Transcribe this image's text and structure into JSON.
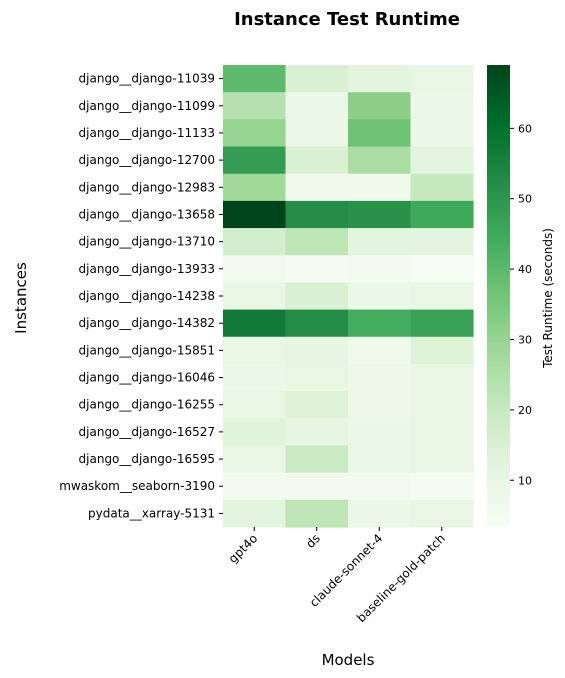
{
  "chart_data": {
    "type": "heatmap",
    "title": "Instance Test Runtime",
    "xlabel": "Models",
    "ylabel": "Instances",
    "colorbar_label": "Test Runtime (seconds)",
    "colormap": "Greens",
    "vmin": 3.5,
    "vmax": 69,
    "colorbar_ticks": [
      10,
      20,
      30,
      40,
      50,
      60
    ],
    "x_categories": [
      "gpt4o",
      "ds",
      "claude-sonnet-4",
      "baseline-gold-patch"
    ],
    "y_categories": [
      "django__django-11039",
      "django__django-11099",
      "django__django-11133",
      "django__django-12700",
      "django__django-12983",
      "django__django-13658",
      "django__django-13710",
      "django__django-13933",
      "django__django-14238",
      "django__django-14382",
      "django__django-15851",
      "django__django-16046",
      "django__django-16255",
      "django__django-16527",
      "django__django-16595",
      "mwaskom__seaborn-3190",
      "pydata__xarray-5131"
    ],
    "values": [
      [
        40,
        15,
        12,
        10
      ],
      [
        24,
        9,
        32,
        9
      ],
      [
        30,
        9,
        37,
        9
      ],
      [
        48,
        15,
        26,
        12
      ],
      [
        28,
        7,
        7,
        20
      ],
      [
        69,
        52,
        51,
        45
      ],
      [
        17,
        22,
        12,
        12
      ],
      [
        6,
        5,
        6,
        4
      ],
      [
        10,
        15,
        9,
        10
      ],
      [
        57,
        52,
        44,
        47
      ],
      [
        10,
        11,
        7,
        14
      ],
      [
        9,
        10,
        8,
        10
      ],
      [
        10,
        14,
        8,
        10
      ],
      [
        13,
        11,
        9,
        10
      ],
      [
        10,
        19,
        9,
        10
      ],
      [
        6,
        6,
        6,
        5
      ],
      [
        12,
        22,
        9,
        10
      ]
    ]
  }
}
